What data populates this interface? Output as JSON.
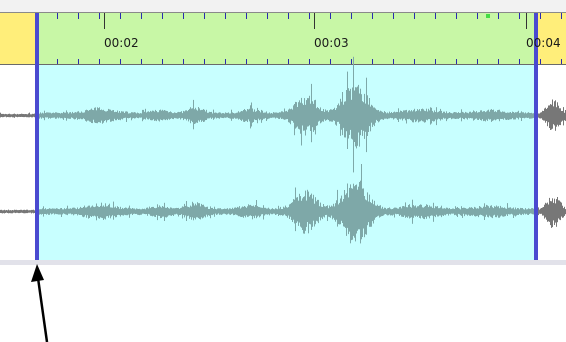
{
  "timeline": {
    "ruler_labels": [
      "00:02",
      "00:03",
      "00:04"
    ]
  },
  "colors": {
    "ruler_background": "#c8f7a6",
    "ruler_outside_selection": "#ffee7a",
    "selection_background": "#c8ffff",
    "waveform": "#7ea8a8",
    "waveform_outside": "#777777",
    "selection_edge": "#4a4ad0",
    "tick": "#2a2ab0",
    "arrow": "#000000"
  },
  "icons": {
    "annotation": "arrow-pointing-up"
  }
}
